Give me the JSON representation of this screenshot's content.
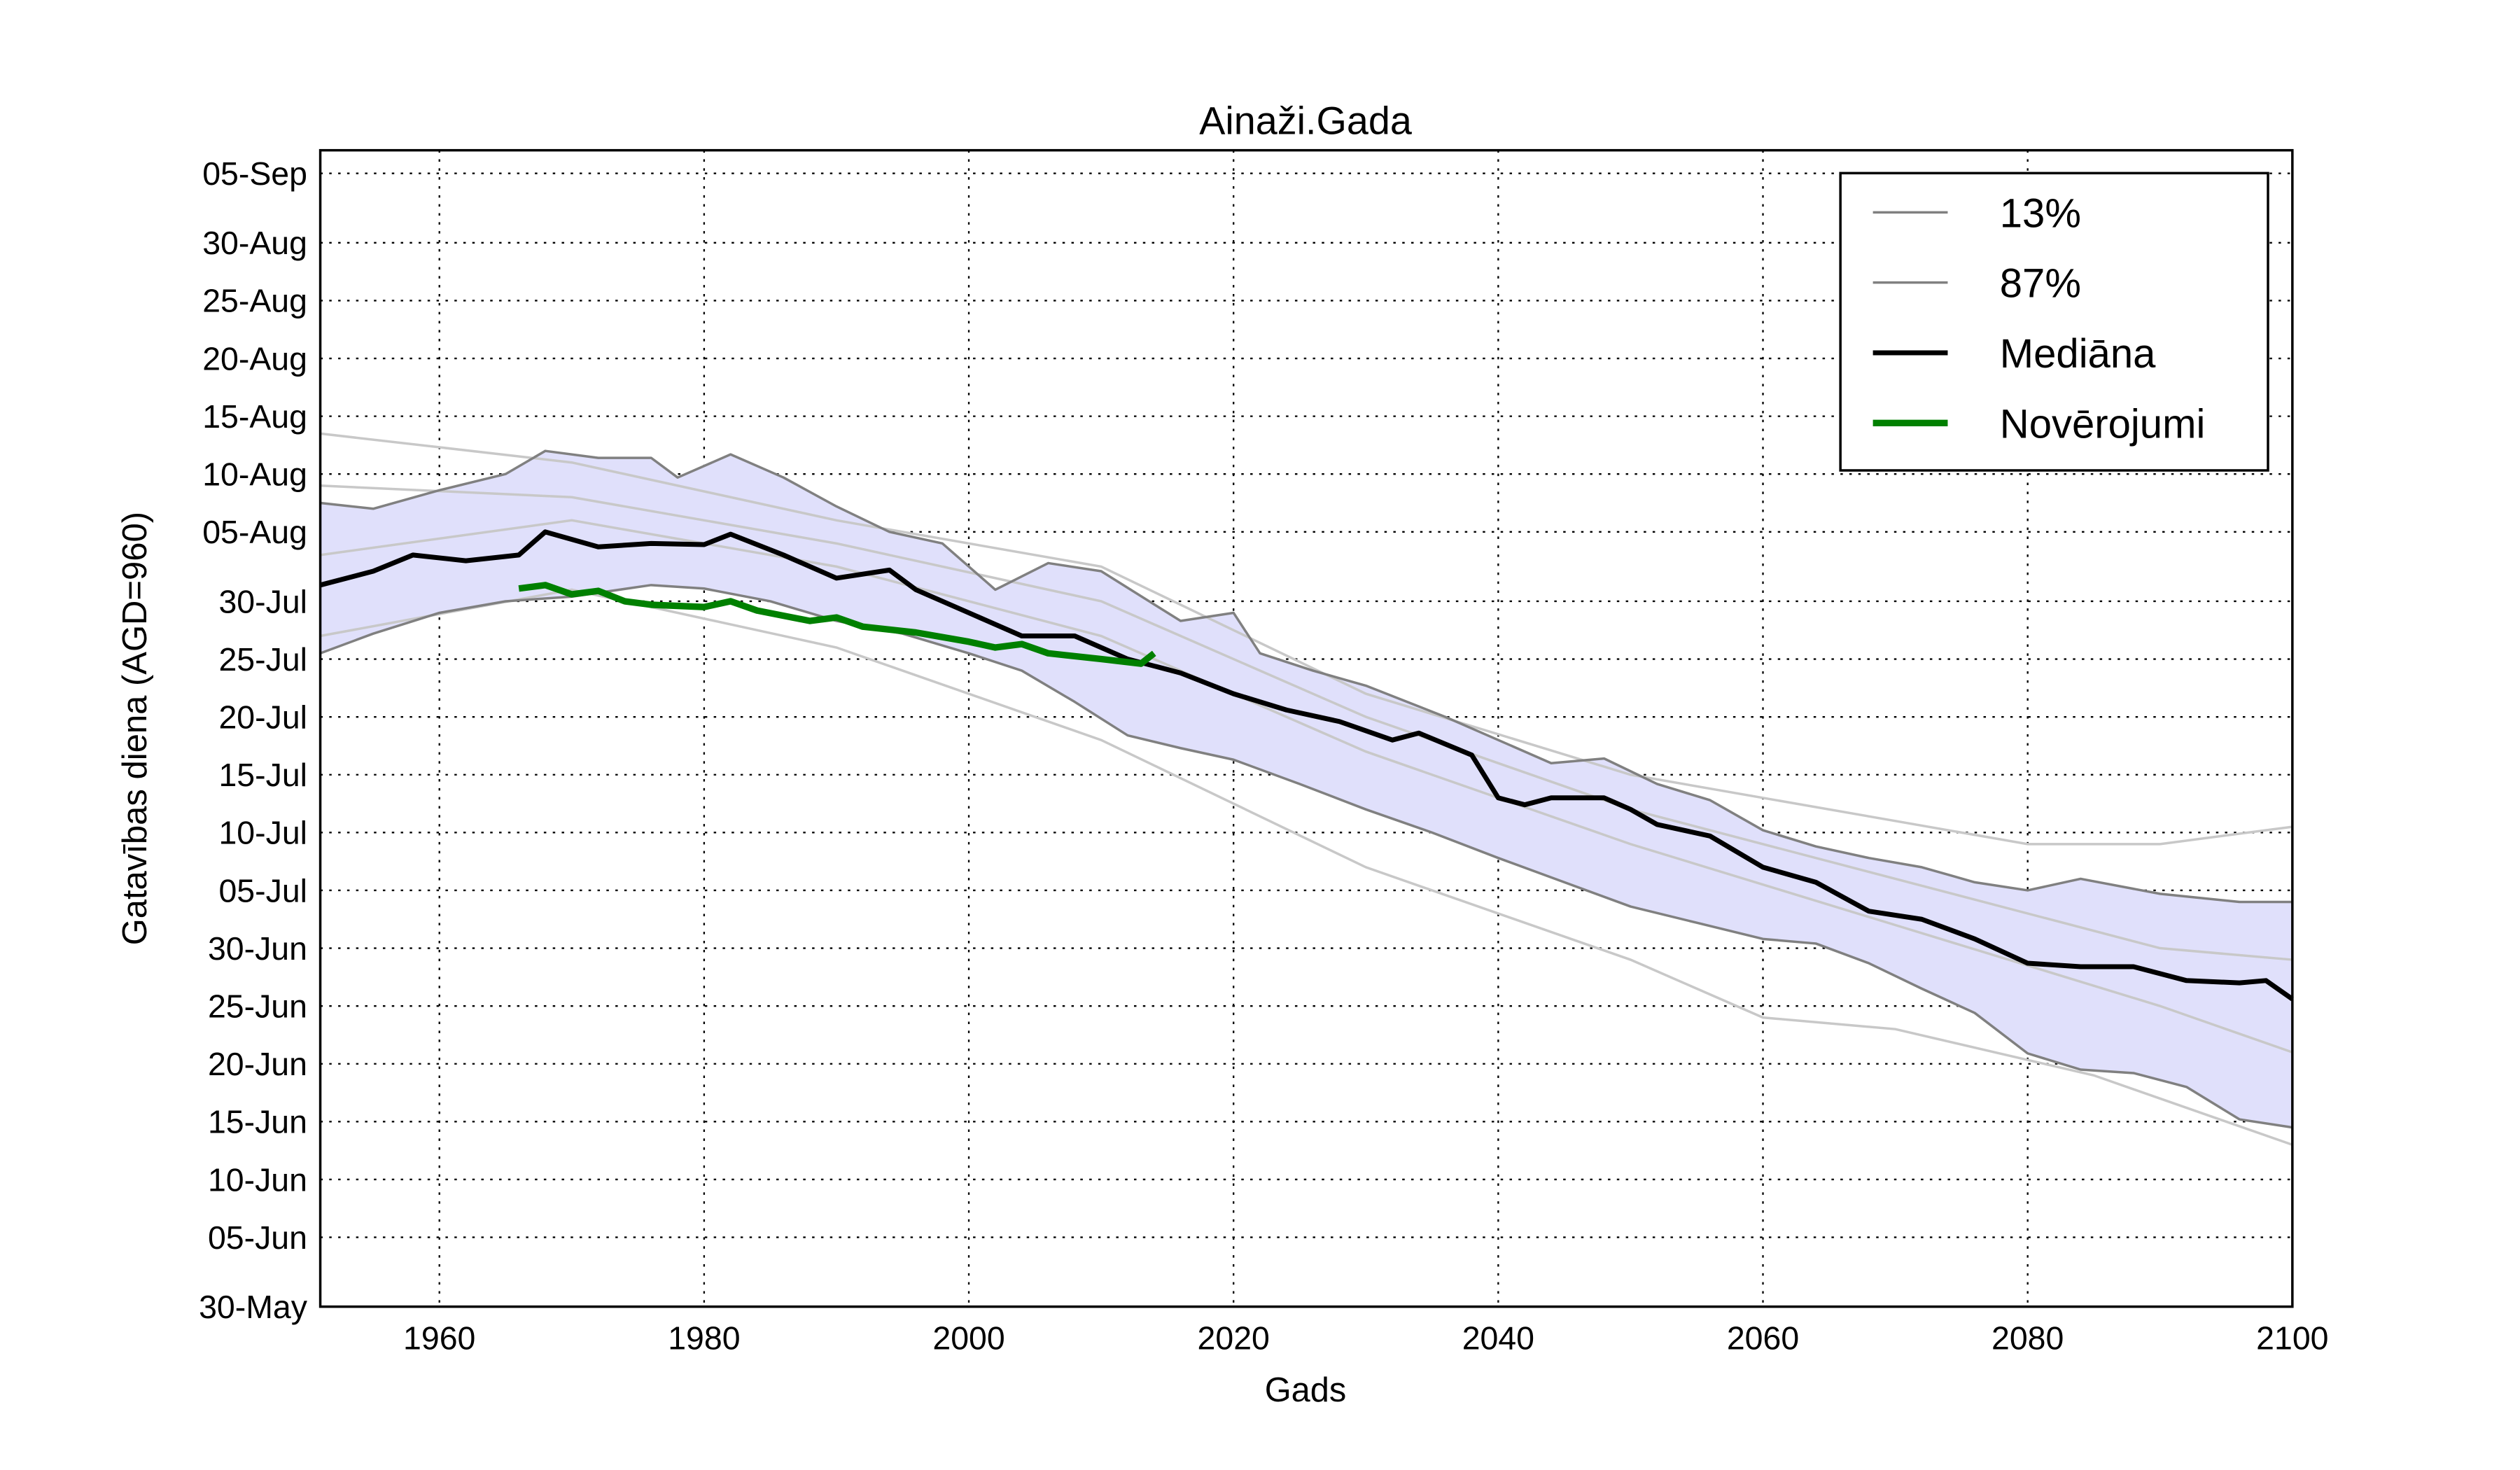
{
  "chart_data": {
    "type": "line",
    "title": "Ainaži.Gada",
    "xlabel": "Gads",
    "ylabel": "Gatavības diena (AGD=960)",
    "xlim": [
      1951,
      2100
    ],
    "ylim": [
      150,
      250
    ],
    "grid": true,
    "legend_position": "top-right",
    "x_ticks": [
      1960,
      1980,
      2000,
      2020,
      2040,
      2060,
      2080,
      2100
    ],
    "y_ticks": [
      {
        "day": 150,
        "label": "30-May"
      },
      {
        "day": 156,
        "label": "05-Jun"
      },
      {
        "day": 161,
        "label": "10-Jun"
      },
      {
        "day": 166,
        "label": "15-Jun"
      },
      {
        "day": 171,
        "label": "20-Jun"
      },
      {
        "day": 176,
        "label": "25-Jun"
      },
      {
        "day": 181,
        "label": "30-Jun"
      },
      {
        "day": 186,
        "label": "05-Jul"
      },
      {
        "day": 191,
        "label": "10-Jul"
      },
      {
        "day": 196,
        "label": "15-Jul"
      },
      {
        "day": 201,
        "label": "20-Jul"
      },
      {
        "day": 206,
        "label": "25-Jul"
      },
      {
        "day": 211,
        "label": "30-Jul"
      },
      {
        "day": 217,
        "label": "05-Aug"
      },
      {
        "day": 222,
        "label": "10-Aug"
      },
      {
        "day": 227,
        "label": "15-Aug"
      },
      {
        "day": 232,
        "label": "20-Aug"
      },
      {
        "day": 237,
        "label": "25-Aug"
      },
      {
        "day": 242,
        "label": "30-Aug"
      },
      {
        "day": 248,
        "label": "05-Sep"
      }
    ],
    "band_fill": "#e0e0fb",
    "series": [
      {
        "name": "13%",
        "color": "#808080",
        "width": 1.5,
        "x": [
          1951,
          1955,
          1960,
          1965,
          1970,
          1976,
          1980,
          1985,
          1990,
          1995,
          2000,
          2004,
          2008,
          2012,
          2016,
          2020,
          2025,
          2030,
          2035,
          2040,
          2045,
          2050,
          2055,
          2060,
          2064,
          2068,
          2072,
          2076,
          2080,
          2084,
          2088,
          2092,
          2096,
          2100
        ],
        "y": [
          206.5,
          208.2,
          210,
          211,
          211.4,
          212.4,
          212.1,
          211,
          209.3,
          208.2,
          206.5,
          205,
          202.3,
          199.4,
          198.3,
          197.3,
          195.2,
          193,
          191,
          188.8,
          186.7,
          184.6,
          183.2,
          181.8,
          181.4,
          179.7,
          177.5,
          175.4,
          171.9,
          170.5,
          170.2,
          169,
          166.2,
          165.5
        ]
      },
      {
        "name": "87%",
        "color": "#808080",
        "width": 1.5,
        "x": [
          1951,
          1955,
          1960,
          1965,
          1968,
          1972,
          1976,
          1978,
          1982,
          1986,
          1990,
          1994,
          1998,
          2002,
          2006,
          2010,
          2016,
          2020,
          2022,
          2026,
          2030,
          2036,
          2040,
          2044,
          2048,
          2052,
          2056,
          2060,
          2064,
          2068,
          2072,
          2076,
          2080,
          2084,
          2090,
          2096,
          2100
        ],
        "y": [
          219.5,
          219,
          220.6,
          222,
          224,
          223.4,
          223.4,
          221.7,
          223.7,
          221.7,
          219.2,
          217,
          216,
          212,
          214.3,
          213.6,
          209.3,
          210,
          206.5,
          205,
          203.7,
          201,
          199,
          197,
          197.4,
          195.2,
          193.8,
          191.2,
          189.8,
          188.8,
          188,
          186.7,
          186,
          187,
          185.7,
          185,
          185
        ]
      },
      {
        "name": "Mediāna",
        "color": "#000000",
        "width": 3,
        "x": [
          1951,
          1955,
          1958,
          1962,
          1966,
          1968,
          1972,
          1976,
          1980,
          1982,
          1986,
          1990,
          1994,
          1996,
          2000,
          2004,
          2008,
          2012,
          2016,
          2020,
          2024,
          2028,
          2032,
          2034,
          2038,
          2040,
          2042,
          2044,
          2048,
          2050,
          2052,
          2056,
          2060,
          2064,
          2068,
          2072,
          2076,
          2080,
          2084,
          2088,
          2092,
          2096,
          2098,
          2100
        ],
        "y": [
          212.4,
          213.6,
          215,
          214.5,
          215,
          217,
          215.7,
          216,
          215.9,
          216.8,
          215,
          213,
          213.7,
          212,
          210,
          208,
          208,
          206,
          204.8,
          203,
          201.6,
          200.6,
          199,
          199.6,
          197.7,
          194,
          193.4,
          194,
          194,
          193,
          191.7,
          190.7,
          188,
          186.7,
          184.2,
          183.5,
          181.8,
          179.7,
          179.4,
          179.4,
          178.2,
          178,
          178.2,
          176.6
        ]
      },
      {
        "name": "Novērojumi",
        "color": "#008000",
        "width": 4,
        "x": [
          1966,
          1968,
          1970,
          1972,
          1974,
          1976,
          1980,
          1982,
          1984,
          1988,
          1990,
          1992,
          1996,
          2000,
          2002,
          2004,
          2006,
          2010,
          2013,
          2014
        ],
        "y": [
          212.1,
          212.4,
          211.6,
          211.9,
          211,
          210.7,
          210.5,
          211,
          210.2,
          209.3,
          209.6,
          208.8,
          208.3,
          207.5,
          207,
          207.3,
          206.5,
          206,
          205.6,
          206.5
        ]
      }
    ],
    "ensemble": [
      {
        "x": [
          1951,
          1970,
          1990,
          2010,
          2030,
          2050,
          2070,
          2080,
          2090,
          2100
        ],
        "y": [
          225.5,
          223,
          218,
          214,
          203,
          196,
          192,
          190,
          190,
          191.5
        ]
      },
      {
        "x": [
          1951,
          1970,
          1990,
          2010,
          2030,
          2050,
          2060,
          2070,
          2085,
          2100
        ],
        "y": [
          208,
          212,
          207,
          199,
          188,
          180,
          175,
          174,
          170,
          164
        ]
      },
      {
        "x": [
          1951,
          1970,
          1990,
          2010,
          2030,
          2050,
          2070,
          2090,
          2100
        ],
        "y": [
          215,
          218,
          214,
          208,
          198,
          190,
          183,
          176,
          172
        ]
      },
      {
        "x": [
          1951,
          1970,
          1990,
          2010,
          2030,
          2050,
          2070,
          2090,
          2100
        ],
        "y": [
          221,
          220,
          216,
          211,
          201,
          193,
          187,
          181,
          180
        ]
      }
    ]
  }
}
